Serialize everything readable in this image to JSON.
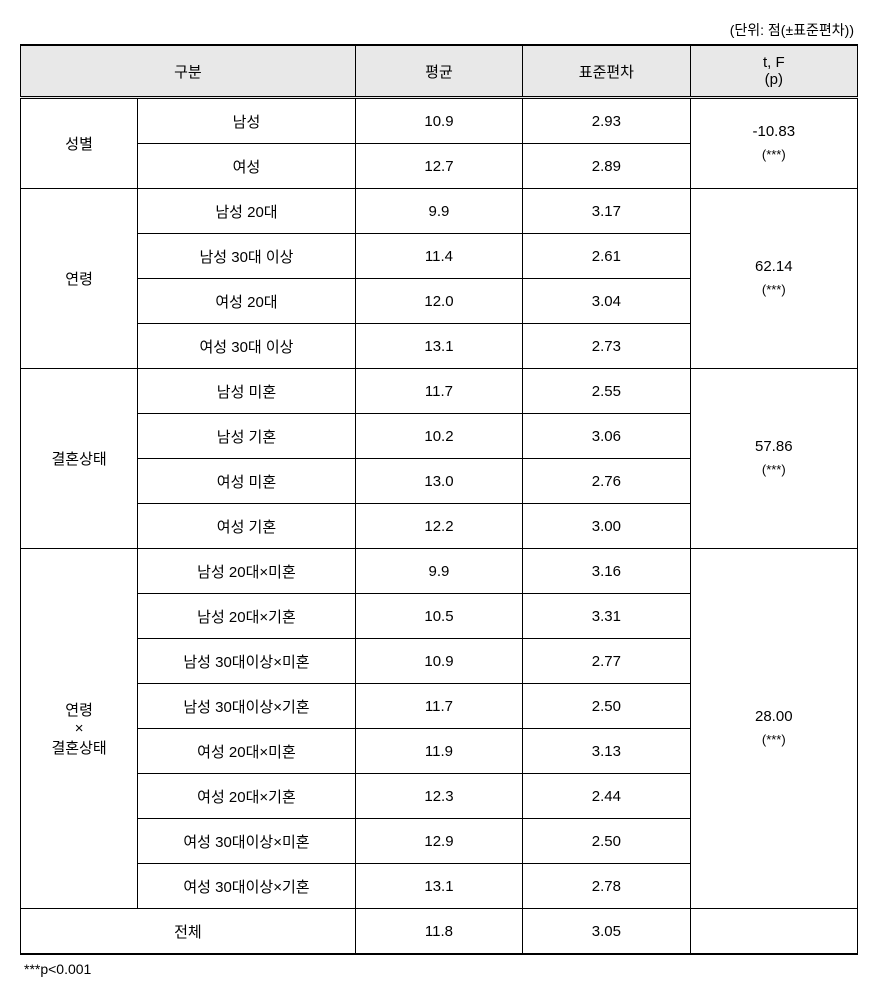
{
  "unit_label": "(단위: 점(±표준편차))",
  "headers": {
    "category": "구분",
    "mean": "평균",
    "sd": "표준편차",
    "stat": "t, F",
    "stat_sub": "(p)"
  },
  "blocks": [
    {
      "label": "성별",
      "rows": [
        {
          "name": "남성",
          "mean": "10.9",
          "sd": "2.93"
        },
        {
          "name": "여성",
          "mean": "12.7",
          "sd": "2.89"
        }
      ],
      "stat_val": "-10.83",
      "stat_sig": "(***)"
    },
    {
      "label": "연령",
      "rows": [
        {
          "name": "남성 20대",
          "mean": "9.9",
          "sd": "3.17"
        },
        {
          "name": "남성 30대 이상",
          "mean": "11.4",
          "sd": "2.61"
        },
        {
          "name": "여성 20대",
          "mean": "12.0",
          "sd": "3.04"
        },
        {
          "name": "여성 30대 이상",
          "mean": "13.1",
          "sd": "2.73"
        }
      ],
      "stat_val": "62.14",
      "stat_sig": "(***)"
    },
    {
      "label": "결혼상태",
      "rows": [
        {
          "name": "남성 미혼",
          "mean": "11.7",
          "sd": "2.55"
        },
        {
          "name": "남성 기혼",
          "mean": "10.2",
          "sd": "3.06"
        },
        {
          "name": "여성 미혼",
          "mean": "13.0",
          "sd": "2.76"
        },
        {
          "name": "여성 기혼",
          "mean": "12.2",
          "sd": "3.00"
        }
      ],
      "stat_val": "57.86",
      "stat_sig": "(***)"
    },
    {
      "label": "연령\n×\n결혼상태",
      "rows": [
        {
          "name": "남성 20대×미혼",
          "mean": "9.9",
          "sd": "3.16"
        },
        {
          "name": "남성 20대×기혼",
          "mean": "10.5",
          "sd": "3.31"
        },
        {
          "name": "남성 30대이상×미혼",
          "mean": "10.9",
          "sd": "2.77"
        },
        {
          "name": "남성 30대이상×기혼",
          "mean": "11.7",
          "sd": "2.50"
        },
        {
          "name": "여성 20대×미혼",
          "mean": "11.9",
          "sd": "3.13"
        },
        {
          "name": "여성 20대×기혼",
          "mean": "12.3",
          "sd": "2.44"
        },
        {
          "name": "여성 30대이상×미혼",
          "mean": "12.9",
          "sd": "2.50"
        },
        {
          "name": "여성 30대이상×기혼",
          "mean": "13.1",
          "sd": "2.78"
        }
      ],
      "stat_val": "28.00",
      "stat_sig": "(***)"
    }
  ],
  "total": {
    "label": "전체",
    "mean": "11.8",
    "sd": "3.05"
  },
  "footnote": "***p<0.001"
}
